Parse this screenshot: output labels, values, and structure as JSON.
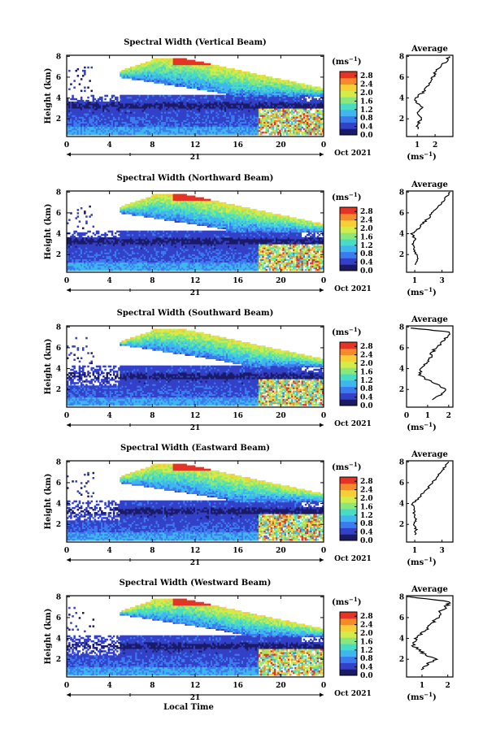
{
  "figure": {
    "xlabel": "Local Time",
    "ylabel": "Height (km)",
    "date_label": "Oct 2021",
    "day_label": "21",
    "unit_label": "(ms",
    "unit_exp": "−1",
    "unit_close": ")",
    "average_title": "Average"
  },
  "colormap": [
    "#1a1a66",
    "#3340c8",
    "#3a7cf0",
    "#3fb6ee",
    "#49dcc4",
    "#8ae87a",
    "#d2ec4a",
    "#f5cf35",
    "#f58a2a",
    "#e53424"
  ],
  "chart_data": [
    {
      "type": "heatmap",
      "title": "Spectral Width (Vertical Beam)",
      "x_ticks": [
        "0",
        "4",
        "8",
        "12",
        "16",
        "20",
        "0"
      ],
      "xlim": [
        0,
        24
      ],
      "y_ticks": [
        "2",
        "4",
        "6",
        "8"
      ],
      "ylim": [
        0.3,
        8.1
      ],
      "colorbar_ticks": [
        "0.0",
        "0.4",
        "0.8",
        "1.2",
        "1.6",
        "2.0",
        "2.4",
        "2.8"
      ],
      "colorbar_range": [
        0,
        3.0
      ],
      "average_profile": {
        "x_ticks": [
          "1",
          "2"
        ],
        "xlim": [
          0.4,
          3.0
        ],
        "height_km": [
          1.0,
          1.5,
          2.0,
          2.5,
          3.0,
          3.5,
          4.0,
          4.5,
          5.0,
          5.5,
          6.0,
          6.5,
          7.0,
          7.5,
          8.0
        ],
        "width_ms": [
          1.0,
          1.05,
          1.2,
          1.0,
          1.3,
          1.0,
          0.9,
          1.3,
          1.5,
          1.7,
          1.9,
          2.0,
          2.3,
          2.6,
          2.8
        ]
      }
    },
    {
      "type": "heatmap",
      "title": "Spectral Width (Northward Beam)",
      "x_ticks": [
        "0",
        "4",
        "8",
        "12",
        "16",
        "20",
        "0"
      ],
      "xlim": [
        0,
        24
      ],
      "y_ticks": [
        "2",
        "4",
        "6",
        "8"
      ],
      "ylim": [
        0.3,
        8.1
      ],
      "colorbar_ticks": [
        "0.0",
        "0.4",
        "0.8",
        "1.2",
        "1.6",
        "2.0",
        "2.4",
        "2.8"
      ],
      "colorbar_range": [
        0,
        3.0
      ],
      "average_profile": {
        "x_ticks": [
          "1",
          "3"
        ],
        "xlim": [
          0.4,
          3.8
        ],
        "height_km": [
          1.0,
          1.5,
          2.0,
          2.5,
          3.0,
          3.5,
          4.0,
          4.5,
          5.0,
          5.5,
          6.0,
          6.5,
          7.0,
          7.5,
          8.0
        ],
        "width_ms": [
          1.0,
          1.2,
          1.1,
          1.0,
          0.9,
          1.0,
          0.8,
          1.3,
          1.6,
          2.0,
          2.3,
          2.7,
          3.0,
          3.3,
          3.6
        ]
      }
    },
    {
      "type": "heatmap",
      "title": "Spectral Width (Southward Beam)",
      "x_ticks": [
        "0",
        "4",
        "8",
        "12",
        "16",
        "20",
        "0"
      ],
      "xlim": [
        0,
        24
      ],
      "y_ticks": [
        "2",
        "4",
        "6",
        "8"
      ],
      "ylim": [
        0.3,
        8.1
      ],
      "colorbar_ticks": [
        "0.0",
        "0.4",
        "0.8",
        "1.2",
        "1.6",
        "2.0",
        "2.4",
        "2.8"
      ],
      "colorbar_range": [
        0,
        3.0
      ],
      "average_profile": {
        "x_ticks": [
          "0",
          "1",
          "2"
        ],
        "xlim": [
          0,
          2.2
        ],
        "height_km": [
          1.0,
          1.5,
          2.0,
          2.5,
          3.0,
          3.5,
          4.0,
          4.5,
          5.0,
          5.5,
          6.0,
          6.5,
          7.0,
          7.5,
          7.9
        ],
        "width_ms": [
          1.2,
          1.6,
          1.8,
          1.5,
          0.9,
          0.6,
          0.7,
          0.9,
          1.1,
          1.2,
          1.4,
          1.7,
          1.9,
          2.1,
          0.2
        ]
      }
    },
    {
      "type": "heatmap",
      "title": "Spectral Width (Eastward Beam)",
      "x_ticks": [
        "0",
        "4",
        "8",
        "12",
        "16",
        "20",
        "0"
      ],
      "xlim": [
        0,
        24
      ],
      "y_ticks": [
        "2",
        "4",
        "6",
        "8"
      ],
      "ylim": [
        0.3,
        8.1
      ],
      "colorbar_ticks": [
        "0.0",
        "0.4",
        "0.8",
        "1.2",
        "1.6",
        "2.0",
        "2.4",
        "2.8"
      ],
      "colorbar_range": [
        0,
        3.0
      ],
      "average_profile": {
        "x_ticks": [
          "1",
          "3"
        ],
        "xlim": [
          0.4,
          3.8
        ],
        "height_km": [
          1.0,
          1.5,
          2.0,
          2.5,
          3.0,
          3.5,
          4.0,
          4.5,
          5.0,
          5.5,
          6.0,
          6.5,
          7.0,
          7.5,
          8.0
        ],
        "width_ms": [
          1.0,
          1.1,
          1.0,
          1.1,
          0.9,
          1.0,
          0.8,
          1.3,
          1.6,
          2.0,
          2.3,
          2.6,
          2.9,
          3.2,
          3.5
        ]
      }
    },
    {
      "type": "heatmap",
      "title": "Spectral Width (Westward Beam)",
      "x_ticks": [
        "0",
        "4",
        "8",
        "12",
        "16",
        "20",
        "0"
      ],
      "xlim": [
        0,
        24
      ],
      "y_ticks": [
        "2",
        "4",
        "6",
        "8"
      ],
      "ylim": [
        0.3,
        8.1
      ],
      "colorbar_ticks": [
        "0.0",
        "0.4",
        "0.8",
        "1.2",
        "1.6",
        "2.0",
        "2.4",
        "2.8"
      ],
      "colorbar_range": [
        0,
        3.0
      ],
      "average_profile": {
        "x_ticks": [
          "1",
          "2"
        ],
        "xlim": [
          0.4,
          2.2
        ],
        "height_km": [
          1.0,
          1.5,
          2.0,
          2.5,
          3.0,
          3.5,
          4.0,
          4.5,
          5.0,
          5.5,
          6.0,
          6.5,
          7.0,
          7.5,
          8.0
        ],
        "width_ms": [
          1.0,
          1.2,
          1.5,
          1.1,
          0.8,
          0.6,
          0.8,
          1.0,
          1.2,
          1.4,
          1.6,
          1.7,
          1.9,
          2.1,
          0.5
        ]
      }
    }
  ]
}
